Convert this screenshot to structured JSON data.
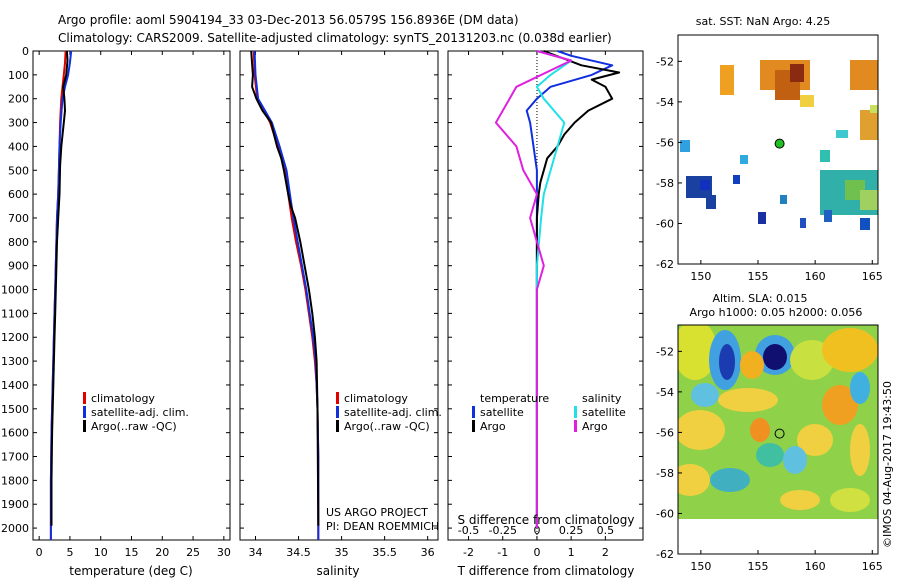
{
  "header": {
    "line1": "Argo profile: aoml 5904194_33 03-Dec-2013 56.0579S 156.8936E (DM data)",
    "line2": "Climatology: CARS2009. Satellite-adjusted climatology: synTS_20131203.nc (0.038d earlier)"
  },
  "credit": "US ARGO PROJECT\nPI: DEAN ROEMMICH",
  "imos_stamp": "©IMOS 04-Aug-2017 19:43:50",
  "colors": {
    "climatology": "#e00000",
    "satellite": "#1030e0",
    "argo": "#000000",
    "sal_satellite": "#20e0e8",
    "sal_argo": "#e020e0"
  },
  "chart_data": [
    {
      "type": "line",
      "id": "temperature",
      "xlabel": "temperature (deg C)",
      "ylabel": "",
      "xlim": [
        -1,
        31
      ],
      "ylim": [
        2050,
        0
      ],
      "xticks": [
        0,
        5,
        10,
        15,
        20,
        25,
        30
      ],
      "yticks": [
        0,
        100,
        200,
        300,
        400,
        500,
        600,
        700,
        800,
        900,
        1000,
        1100,
        1200,
        1300,
        1400,
        1500,
        1600,
        1700,
        1800,
        1900,
        2000
      ],
      "legend": [
        "climatology",
        "satellite-adj. clim.",
        "Argo(..raw -QC)"
      ],
      "series": [
        {
          "name": "climatology",
          "color": "#e00000",
          "x": [
            4.3,
            4.2,
            4.0,
            3.8,
            3.6,
            3.4,
            3.3,
            3.2,
            3.1,
            2.9,
            2.8,
            2.7,
            2.6,
            2.5,
            2.4,
            2.3,
            2.2,
            2.1,
            2.0,
            1.9,
            1.9
          ],
          "y": [
            0,
            50,
            100,
            150,
            200,
            300,
            400,
            500,
            600,
            700,
            800,
            900,
            1000,
            1100,
            1200,
            1300,
            1400,
            1500,
            1600,
            1800,
            2050
          ]
        },
        {
          "name": "satellite-adj. clim.",
          "color": "#1030e0",
          "x": [
            5.2,
            5.0,
            4.7,
            4.2,
            3.8,
            3.5,
            3.3,
            3.2,
            3.1,
            2.9,
            2.8,
            2.7,
            2.6,
            2.5,
            2.4,
            2.3,
            2.2,
            2.1,
            2.0,
            1.9,
            1.9
          ],
          "y": [
            0,
            50,
            100,
            150,
            200,
            300,
            400,
            500,
            600,
            700,
            800,
            900,
            1000,
            1100,
            1200,
            1300,
            1400,
            1500,
            1600,
            1800,
            2050
          ]
        },
        {
          "name": "Argo(..raw -QC)",
          "color": "#000000",
          "x": [
            4.5,
            4.6,
            4.4,
            3.9,
            4.1,
            4.2,
            4.0,
            3.6,
            3.4,
            3.3,
            3.1,
            2.9,
            2.8,
            2.7,
            2.6,
            2.5,
            2.4,
            2.3,
            2.2,
            2.1,
            2.0,
            2.0
          ],
          "y": [
            0,
            40,
            100,
            150,
            200,
            250,
            300,
            400,
            480,
            600,
            700,
            800,
            900,
            1000,
            1100,
            1200,
            1300,
            1400,
            1500,
            1600,
            1800,
            1990
          ]
        }
      ]
    },
    {
      "type": "line",
      "id": "salinity",
      "xlabel": "salinity",
      "ylabel": "",
      "xlim": [
        33.82,
        36.12
      ],
      "ylim": [
        2050,
        0
      ],
      "xticks": [
        34,
        34.5,
        35,
        35.5,
        36
      ],
      "yticks": [
        0,
        100,
        200,
        300,
        400,
        500,
        600,
        700,
        800,
        900,
        1000,
        1100,
        1200,
        1300,
        1400,
        1500,
        1600,
        1700,
        1800,
        1900,
        2000
      ],
      "legend": [
        "climatology",
        "satellite-adj. clim.",
        "Argo(..raw -QC)"
      ],
      "series": [
        {
          "name": "climatology",
          "color": "#e00000",
          "x": [
            33.98,
            33.99,
            34.02,
            34.1,
            34.17,
            34.26,
            34.3,
            34.34,
            34.38,
            34.42,
            34.47,
            34.53,
            34.58,
            34.62,
            34.66,
            34.69,
            34.71,
            34.72,
            34.73,
            34.73
          ],
          "y": [
            0,
            100,
            200,
            250,
            300,
            400,
            450,
            500,
            600,
            700,
            800,
            900,
            1000,
            1100,
            1200,
            1300,
            1400,
            1500,
            1700,
            2050
          ]
        },
        {
          "name": "satellite-adj. clim.",
          "color": "#1030e0",
          "x": [
            33.99,
            34.0,
            34.03,
            34.11,
            34.19,
            34.28,
            34.32,
            34.36,
            34.4,
            34.44,
            34.49,
            34.54,
            34.59,
            34.63,
            34.67,
            34.7,
            34.71,
            34.72,
            34.73,
            34.73
          ],
          "y": [
            0,
            100,
            200,
            250,
            300,
            400,
            450,
            500,
            600,
            700,
            800,
            900,
            1000,
            1100,
            1200,
            1300,
            1400,
            1500,
            1700,
            2050
          ]
        },
        {
          "name": "Argo(..raw -QC)",
          "color": "#000000",
          "x": [
            33.95,
            33.97,
            33.96,
            34.01,
            34.08,
            34.18,
            34.25,
            34.3,
            34.33,
            34.38,
            34.41,
            34.46,
            34.52,
            34.57,
            34.62,
            34.66,
            34.69,
            34.71,
            34.72,
            34.73
          ],
          "y": [
            0,
            100,
            150,
            200,
            250,
            300,
            400,
            450,
            500,
            600,
            650,
            700,
            800,
            900,
            1000,
            1100,
            1200,
            1300,
            1500,
            1990
          ]
        }
      ]
    },
    {
      "type": "line",
      "id": "difference",
      "xlabel": "T difference from climatology",
      "x2label": "S difference from climatology",
      "xlim": [
        -2.6,
        3.1
      ],
      "ylim": [
        2050,
        0
      ],
      "xticks": [
        -2,
        -1,
        0,
        1,
        2
      ],
      "x2ticks": [
        -0.5,
        -0.25,
        0,
        0.25,
        0.5
      ],
      "x2tick_labels": [
        "-0.5",
        "-0.25",
        "0",
        "0.25",
        "0.5"
      ],
      "yticks": [
        0,
        100,
        200,
        300,
        400,
        500,
        600,
        700,
        800,
        900,
        1000,
        1100,
        1200,
        1300,
        1400,
        1500,
        1600,
        1700,
        1800,
        1900,
        2000
      ],
      "legend_temperature": {
        "title": "temperature",
        "items": [
          "satellite",
          "Argo"
        ]
      },
      "legend_salinity": {
        "title": "salinity",
        "items": [
          "satellite",
          "Argo"
        ]
      },
      "series": [
        {
          "name": "satellite",
          "group": "temperature",
          "color": "#1030e0",
          "x": [
            0.6,
            1.0,
            2.2,
            1.6,
            0.4,
            0.0,
            -0.3,
            -0.2,
            -0.1,
            0.0,
            0.0,
            0.0,
            0.0,
            0.0,
            0.0,
            0.0,
            0.0
          ],
          "y": [
            0,
            20,
            60,
            100,
            150,
            200,
            250,
            300,
            400,
            500,
            700,
            900,
            1100,
            1300,
            1500,
            1700,
            2000
          ]
        },
        {
          "name": "Argo",
          "group": "temperature",
          "color": "#000000",
          "x": [
            0.2,
            1.3,
            2.4,
            1.6,
            2.0,
            2.2,
            1.5,
            1.1,
            0.8,
            0.6,
            0.3,
            0.2,
            0.1,
            0.05,
            0.0,
            0.0,
            0.0,
            0.0,
            0.0
          ],
          "y": [
            0,
            60,
            90,
            120,
            150,
            200,
            250,
            300,
            350,
            400,
            450,
            500,
            550,
            600,
            700,
            900,
            1200,
            1600,
            2000
          ]
        },
        {
          "name": "satellite",
          "group": "salinity",
          "color": "#20e0e8",
          "x": [
            0.0,
            0.25,
            0.1,
            0.0,
            0.05,
            0.2,
            0.15,
            0.1,
            0.05,
            0.03,
            0.0,
            0.0,
            0.0,
            0.0
          ],
          "y": [
            0,
            40,
            100,
            150,
            200,
            300,
            400,
            500,
            600,
            700,
            900,
            1200,
            1600,
            2000
          ]
        },
        {
          "name": "Argo",
          "group": "salinity",
          "color": "#e020e0",
          "x": [
            0.0,
            0.25,
            -0.15,
            -0.2,
            -0.3,
            -0.15,
            -0.1,
            0.0,
            -0.05,
            0.0,
            0.05,
            0.0,
            0.0,
            0.0
          ],
          "y": [
            0,
            40,
            150,
            200,
            300,
            400,
            500,
            600,
            700,
            800,
            900,
            1000,
            1200,
            2000
          ]
        }
      ]
    },
    {
      "type": "heatmap",
      "id": "sst_map",
      "title": "sat. SST: NaN Argo: 4.25",
      "xlim": [
        148,
        165.5
      ],
      "ylim": [
        -62,
        -50.7
      ],
      "xticks": [
        150,
        155,
        160,
        165
      ],
      "yticks": [
        -52,
        -54,
        -56,
        -58,
        -60,
        -62
      ],
      "marker": {
        "lon": 156.89,
        "lat": -56.06
      }
    },
    {
      "type": "heatmap",
      "id": "sla_map",
      "title": "Altim. SLA: 0.015",
      "subtitle": "Argo h1000: 0.05 h2000: 0.056",
      "xlim": [
        148,
        165.5
      ],
      "ylim": [
        -62,
        -50.7
      ],
      "xticks": [
        150,
        155,
        160,
        165
      ],
      "yticks": [
        -52,
        -54,
        -56,
        -58,
        -60,
        -62
      ],
      "marker": {
        "lon": 156.89,
        "lat": -56.06
      }
    }
  ]
}
